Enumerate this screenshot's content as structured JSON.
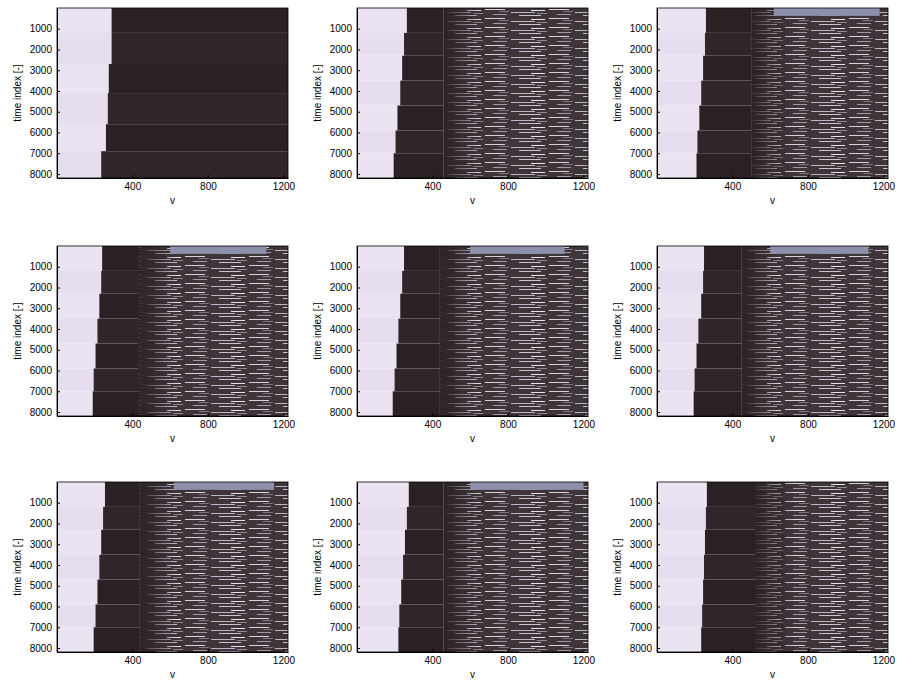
{
  "chart_data": [
    {
      "type": "image",
      "xlabel": "v",
      "ylabel": "time index [-]",
      "xlim": [
        1,
        1224
      ],
      "ylim": [
        8192,
        1
      ],
      "xticks": [
        400,
        800,
        1200
      ],
      "yticks": [
        1000,
        2000,
        3000,
        4000,
        5000,
        6000,
        7000,
        8000
      ],
      "t_breaks": [
        1,
        1200,
        2700,
        4100,
        5600,
        6900,
        8192
      ],
      "edge": [
        290,
        290,
        275,
        270,
        260,
        235
      ],
      "dark_end": 1224
    },
    {
      "type": "image",
      "xlabel": "v",
      "ylabel": "time index [-]",
      "xlim": [
        1,
        1224
      ],
      "ylim": [
        8192,
        1
      ],
      "xticks": [
        400,
        800,
        1200
      ],
      "yticks": [
        1000,
        2000,
        3000,
        4000,
        5000,
        6000,
        7000,
        8000
      ],
      "t_breaks": [
        1,
        1200,
        2300,
        3500,
        4700,
        5900,
        7000,
        8192
      ],
      "edge": [
        265,
        250,
        240,
        230,
        215,
        205,
        195
      ],
      "dark_end": 460
    },
    {
      "type": "image",
      "xlabel": "v",
      "ylabel": "time index [-]",
      "xlim": [
        1,
        1224
      ],
      "ylim": [
        8192,
        1
      ],
      "xticks": [
        400,
        800,
        1200
      ],
      "yticks": [
        1000,
        2000,
        3000,
        4000,
        5000,
        6000,
        7000,
        8000
      ],
      "t_breaks": [
        1,
        1200,
        2300,
        3500,
        4700,
        5900,
        7000,
        8192
      ],
      "edge": [
        260,
        255,
        245,
        235,
        225,
        215,
        210
      ],
      "dark_end": 500,
      "top_patch": [
        620,
        1180,
        380
      ]
    },
    {
      "type": "image",
      "xlabel": "v",
      "ylabel": "time index [-]",
      "xlim": [
        1,
        1224
      ],
      "ylim": [
        8192,
        1
      ],
      "xticks": [
        400,
        800,
        1200
      ],
      "yticks": [
        1000,
        2000,
        3000,
        4000,
        5000,
        6000,
        7000,
        8000
      ],
      "t_breaks": [
        1,
        1200,
        2300,
        3500,
        4700,
        5900,
        7000,
        8192
      ],
      "edge": [
        240,
        235,
        225,
        215,
        205,
        195,
        190
      ],
      "dark_end": 430,
      "top_patch": [
        600,
        1110,
        380
      ]
    },
    {
      "type": "image",
      "xlabel": "v",
      "ylabel": "time index [-]",
      "xlim": [
        1,
        1224
      ],
      "ylim": [
        8192,
        1
      ],
      "xticks": [
        400,
        800,
        1200
      ],
      "yticks": [
        1000,
        2000,
        3000,
        4000,
        5000,
        6000,
        7000,
        8000
      ],
      "t_breaks": [
        1,
        1200,
        2300,
        3500,
        4700,
        5900,
        7000,
        8192
      ],
      "edge": [
        250,
        240,
        230,
        220,
        210,
        200,
        190
      ],
      "dark_end": 440,
      "top_patch": [
        600,
        1100,
        380
      ]
    },
    {
      "type": "image",
      "xlabel": "v",
      "ylabel": "time index [-]",
      "xlim": [
        1,
        1224
      ],
      "ylim": [
        8192,
        1
      ],
      "xticks": [
        400,
        800,
        1200
      ],
      "yticks": [
        1000,
        2000,
        3000,
        4000,
        5000,
        6000,
        7000,
        8000
      ],
      "t_breaks": [
        1,
        1200,
        2300,
        3500,
        4700,
        5900,
        7000,
        8192
      ],
      "edge": [
        250,
        245,
        235,
        220,
        210,
        200,
        195
      ],
      "dark_end": 450,
      "top_patch": [
        600,
        1120,
        380
      ]
    },
    {
      "type": "image",
      "xlabel": "v",
      "ylabel": "time index [-]",
      "xlim": [
        1,
        1224
      ],
      "ylim": [
        8192,
        1
      ],
      "xticks": [
        400,
        800,
        1200
      ],
      "yticks": [
        1000,
        2000,
        3000,
        4000,
        5000,
        6000,
        7000,
        8000
      ],
      "t_breaks": [
        1,
        1200,
        2300,
        3500,
        4700,
        5900,
        7000,
        8192
      ],
      "edge": [
        255,
        245,
        235,
        225,
        215,
        205,
        195
      ],
      "dark_end": 440,
      "top_patch": [
        620,
        1150,
        380
      ]
    },
    {
      "type": "image",
      "xlabel": "v",
      "ylabel": "time index [-]",
      "xlim": [
        1,
        1224
      ],
      "ylim": [
        8192,
        1
      ],
      "xticks": [
        400,
        800,
        1200
      ],
      "yticks": [
        1000,
        2000,
        3000,
        4000,
        5000,
        6000,
        7000,
        8000
      ],
      "t_breaks": [
        1,
        1200,
        2300,
        3500,
        4700,
        5900,
        7000,
        8192
      ],
      "edge": [
        275,
        265,
        255,
        245,
        235,
        225,
        220
      ],
      "dark_end": 460,
      "top_patch": [
        600,
        1200,
        380
      ]
    },
    {
      "type": "image",
      "xlabel": "v",
      "ylabel": "time index [-]",
      "xlim": [
        1,
        1224
      ],
      "ylim": [
        8192,
        1
      ],
      "xticks": [
        400,
        800,
        1200
      ],
      "yticks": [
        1000,
        2000,
        3000,
        4000,
        5000,
        6000,
        7000,
        8000
      ],
      "t_breaks": [
        1,
        1200,
        2300,
        3500,
        4700,
        5900,
        7000,
        8192
      ],
      "edge": [
        265,
        260,
        255,
        250,
        245,
        240,
        235
      ],
      "dark_end": 520
    }
  ]
}
